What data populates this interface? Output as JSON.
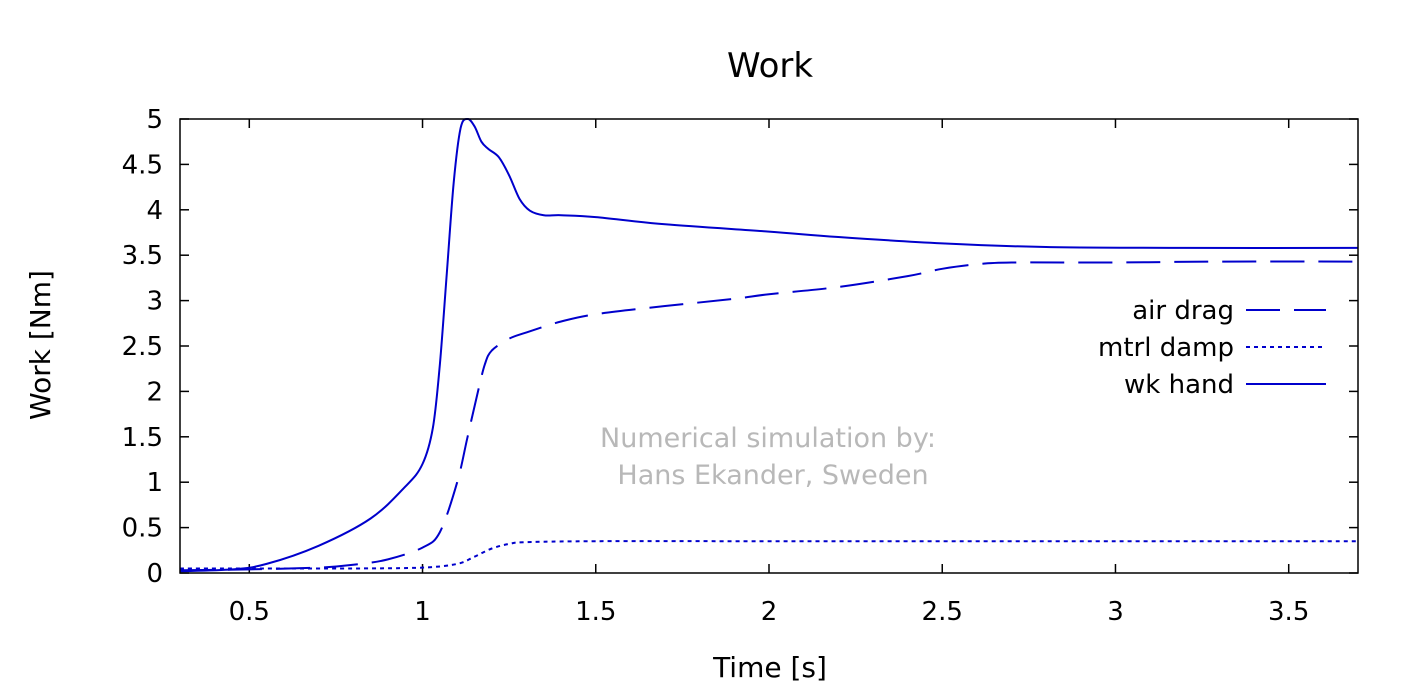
{
  "chart_data": {
    "type": "line",
    "title": "Work",
    "xlabel": "Time [s]",
    "ylabel": "Work [Nm]",
    "xlim": [
      0.3,
      3.7
    ],
    "ylim": [
      0,
      5
    ],
    "xticks": [
      0.5,
      1,
      1.5,
      2,
      2.5,
      3,
      3.5
    ],
    "xtick_labels": [
      "0.5",
      "1",
      "1.5",
      "2",
      "2.5",
      "3",
      "3.5"
    ],
    "yticks": [
      0,
      0.5,
      1,
      1.5,
      2,
      2.5,
      3,
      3.5,
      4,
      4.5,
      5
    ],
    "ytick_labels": [
      "0",
      "0.5",
      "1",
      "1.5",
      "2",
      "2.5",
      "3",
      "3.5",
      "4",
      "4.5",
      "5"
    ],
    "grid": false,
    "legend_position": "right",
    "annotation": [
      "Numerical simulation by:",
      "Hans Ekander, Sweden"
    ],
    "series": [
      {
        "name": "air drag",
        "color": "#0000cc",
        "dash": "long-dash",
        "x": [
          0.3,
          0.5,
          0.7,
          0.8,
          0.9,
          1.0,
          1.05,
          1.1,
          1.13,
          1.16,
          1.18,
          1.2,
          1.25,
          1.3,
          1.4,
          1.5,
          1.7,
          1.9,
          2.0,
          2.2,
          2.4,
          2.5,
          2.6,
          2.7,
          3.0,
          3.3,
          3.7
        ],
        "y": [
          0.03,
          0.04,
          0.06,
          0.09,
          0.15,
          0.28,
          0.45,
          1.0,
          1.5,
          2.0,
          2.3,
          2.45,
          2.58,
          2.65,
          2.77,
          2.85,
          2.94,
          3.02,
          3.07,
          3.15,
          3.27,
          3.35,
          3.4,
          3.42,
          3.42,
          3.43,
          3.43
        ]
      },
      {
        "name": "mtrl damp",
        "color": "#0000cc",
        "dash": "dotted",
        "x": [
          0.3,
          0.5,
          0.8,
          1.0,
          1.1,
          1.15,
          1.2,
          1.25,
          1.3,
          1.5,
          2.0,
          3.0,
          3.7
        ],
        "y": [
          0.05,
          0.05,
          0.05,
          0.06,
          0.1,
          0.18,
          0.27,
          0.32,
          0.34,
          0.35,
          0.35,
          0.35,
          0.35
        ]
      },
      {
        "name": "wk hand",
        "color": "#0000cc",
        "dash": "solid",
        "x": [
          0.3,
          0.45,
          0.55,
          0.7,
          0.85,
          0.95,
          1.0,
          1.03,
          1.05,
          1.07,
          1.09,
          1.11,
          1.13,
          1.15,
          1.17,
          1.19,
          1.22,
          1.25,
          1.28,
          1.31,
          1.35,
          1.4,
          1.5,
          1.7,
          2.0,
          2.2,
          2.5,
          2.8,
          3.2,
          3.7
        ],
        "y": [
          0.02,
          0.04,
          0.1,
          0.3,
          0.6,
          0.95,
          1.2,
          1.6,
          2.3,
          3.3,
          4.3,
          4.9,
          5.0,
          4.92,
          4.75,
          4.67,
          4.58,
          4.38,
          4.12,
          3.99,
          3.94,
          3.94,
          3.92,
          3.84,
          3.76,
          3.7,
          3.63,
          3.59,
          3.58,
          3.58
        ]
      }
    ]
  }
}
